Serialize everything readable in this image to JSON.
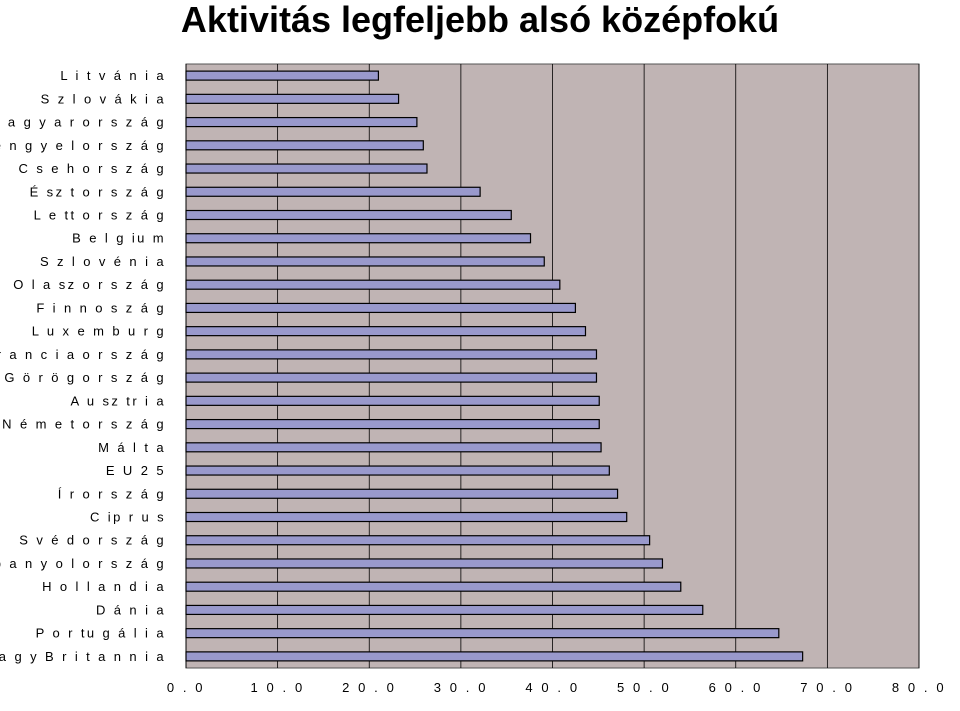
{
  "chart_data": {
    "type": "bar",
    "orientation": "horizontal",
    "title": "Aktivitás legfeljebb alsó középfokú",
    "xlabel": "",
    "ylabel": "",
    "categories": [
      "L i t v á n i a",
      "S z l o v á k i a",
      "M a g y a r o r s z á g",
      "L e n g y e l o r s z á g",
      "C s e h o r s z á g",
      "É sz t o r s z á g",
      "L e tt o r s z á g",
      "B e l g iu m",
      "S z l o v é n i a",
      "O l a sz o r s z á g",
      "F i n n o s z á g",
      "L u x e m b u r g",
      "F r a n c i a o r s z á g",
      "G ö r ö g o r s z á g",
      "A u sz tr i a",
      "N é m e t o r s z á g",
      "M á l t a",
      "E U 2 5",
      "Í r o r s z á g",
      "C ip r u s",
      "S v é d o r s z á g",
      "S p a n y o l o r s z á g",
      "H o l l a n d i a",
      "D á n i a",
      "P o r tu g á l i a",
      "N a g y  B r i t a n n i a"
    ],
    "values": [
      21.0,
      23.2,
      25.2,
      25.9,
      26.3,
      32.1,
      35.5,
      37.6,
      39.1,
      40.8,
      42.5,
      43.6,
      44.8,
      44.8,
      45.1,
      45.1,
      45.3,
      46.2,
      47.1,
      48.1,
      50.6,
      52.0,
      54.0,
      56.4,
      64.7,
      67.3
    ],
    "xlim": [
      0,
      80
    ],
    "xticks": [
      0,
      10,
      20,
      30,
      40,
      50,
      60,
      70,
      80
    ],
    "xtick_labels": [
      "0 . 0",
      "1 0 . 0",
      "2 0 . 0",
      "3 0 . 0",
      "4 0 . 0",
      "5 0 . 0",
      "6 0 . 0",
      "7 0 . 0",
      "8 0 . 0"
    ],
    "grid": true,
    "legend": "none",
    "colors": {
      "bar_fill": "#9999cc",
      "bar_stroke": "#000000",
      "plot_bg": "#c0b4b4",
      "gridline": "#000000"
    }
  }
}
